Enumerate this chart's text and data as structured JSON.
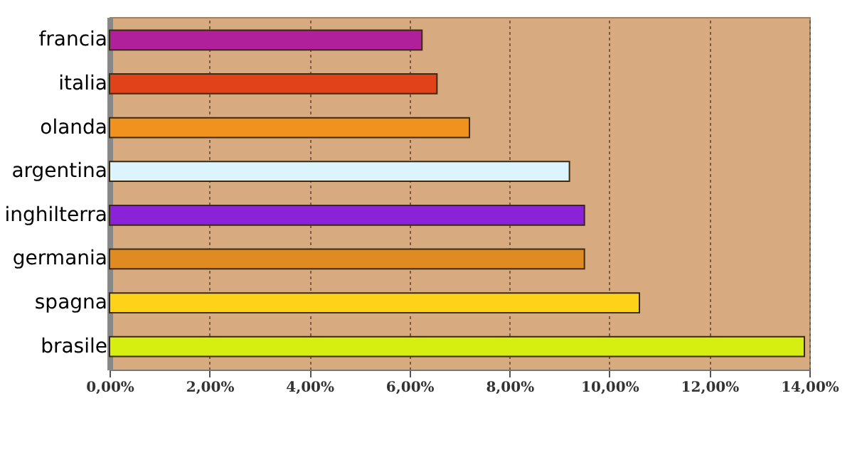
{
  "chart_data": {
    "type": "bar",
    "orientation": "horizontal",
    "categories": [
      "francia",
      "italia",
      "olanda",
      "argentina",
      "inghilterra",
      "germania",
      "spagna",
      "brasile"
    ],
    "values": [
      6.25,
      6.55,
      7.2,
      9.2,
      9.5,
      9.5,
      10.6,
      13.9
    ],
    "colors": [
      "#b0209a",
      "#e2421a",
      "#f2921e",
      "#dcf4fc",
      "#8a22d8",
      "#e08a22",
      "#ffd21a",
      "#d6ee10"
    ],
    "xlim": [
      0,
      14
    ],
    "xticks": [
      {
        "value": 0,
        "label": "0,00%"
      },
      {
        "value": 2,
        "label": "2,00%"
      },
      {
        "value": 4,
        "label": "4,00%"
      },
      {
        "value": 6,
        "label": "6,00%"
      },
      {
        "value": 8,
        "label": "8,00%"
      },
      {
        "value": 10,
        "label": "10,00%"
      },
      {
        "value": 12,
        "label": "12,00%"
      },
      {
        "value": 14,
        "label": "14,00%"
      }
    ],
    "grid": "x"
  }
}
